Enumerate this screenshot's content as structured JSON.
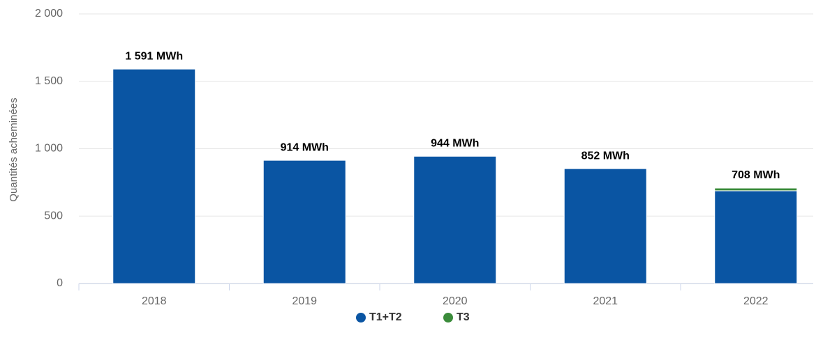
{
  "chart_data": {
    "type": "stacked_bar",
    "y_label": "Quantités acheminées",
    "categories": [
      "2018",
      "2019",
      "2020",
      "2021",
      "2022"
    ],
    "series": [
      {
        "name": "T1+T2",
        "color": "#0a55a3",
        "values": [
          1591,
          914,
          944,
          852,
          688
        ]
      },
      {
        "name": "T3",
        "color": "#3a8b3a",
        "values": [
          0,
          0,
          0,
          0,
          20
        ]
      }
    ],
    "totals": [
      1591,
      914,
      944,
      852,
      708
    ],
    "total_labels": [
      "1 591 MWh",
      "914 MWh",
      "944 MWh",
      "852 MWh",
      "708 MWh"
    ],
    "ylim": [
      0,
      2000
    ],
    "yticks": [
      0,
      500,
      {
        "value": 1000,
        "label": "1 000"
      },
      {
        "value": 1500,
        "label": "1 500"
      },
      {
        "value": 2000,
        "label": "2 000"
      }
    ],
    "grid": true
  }
}
